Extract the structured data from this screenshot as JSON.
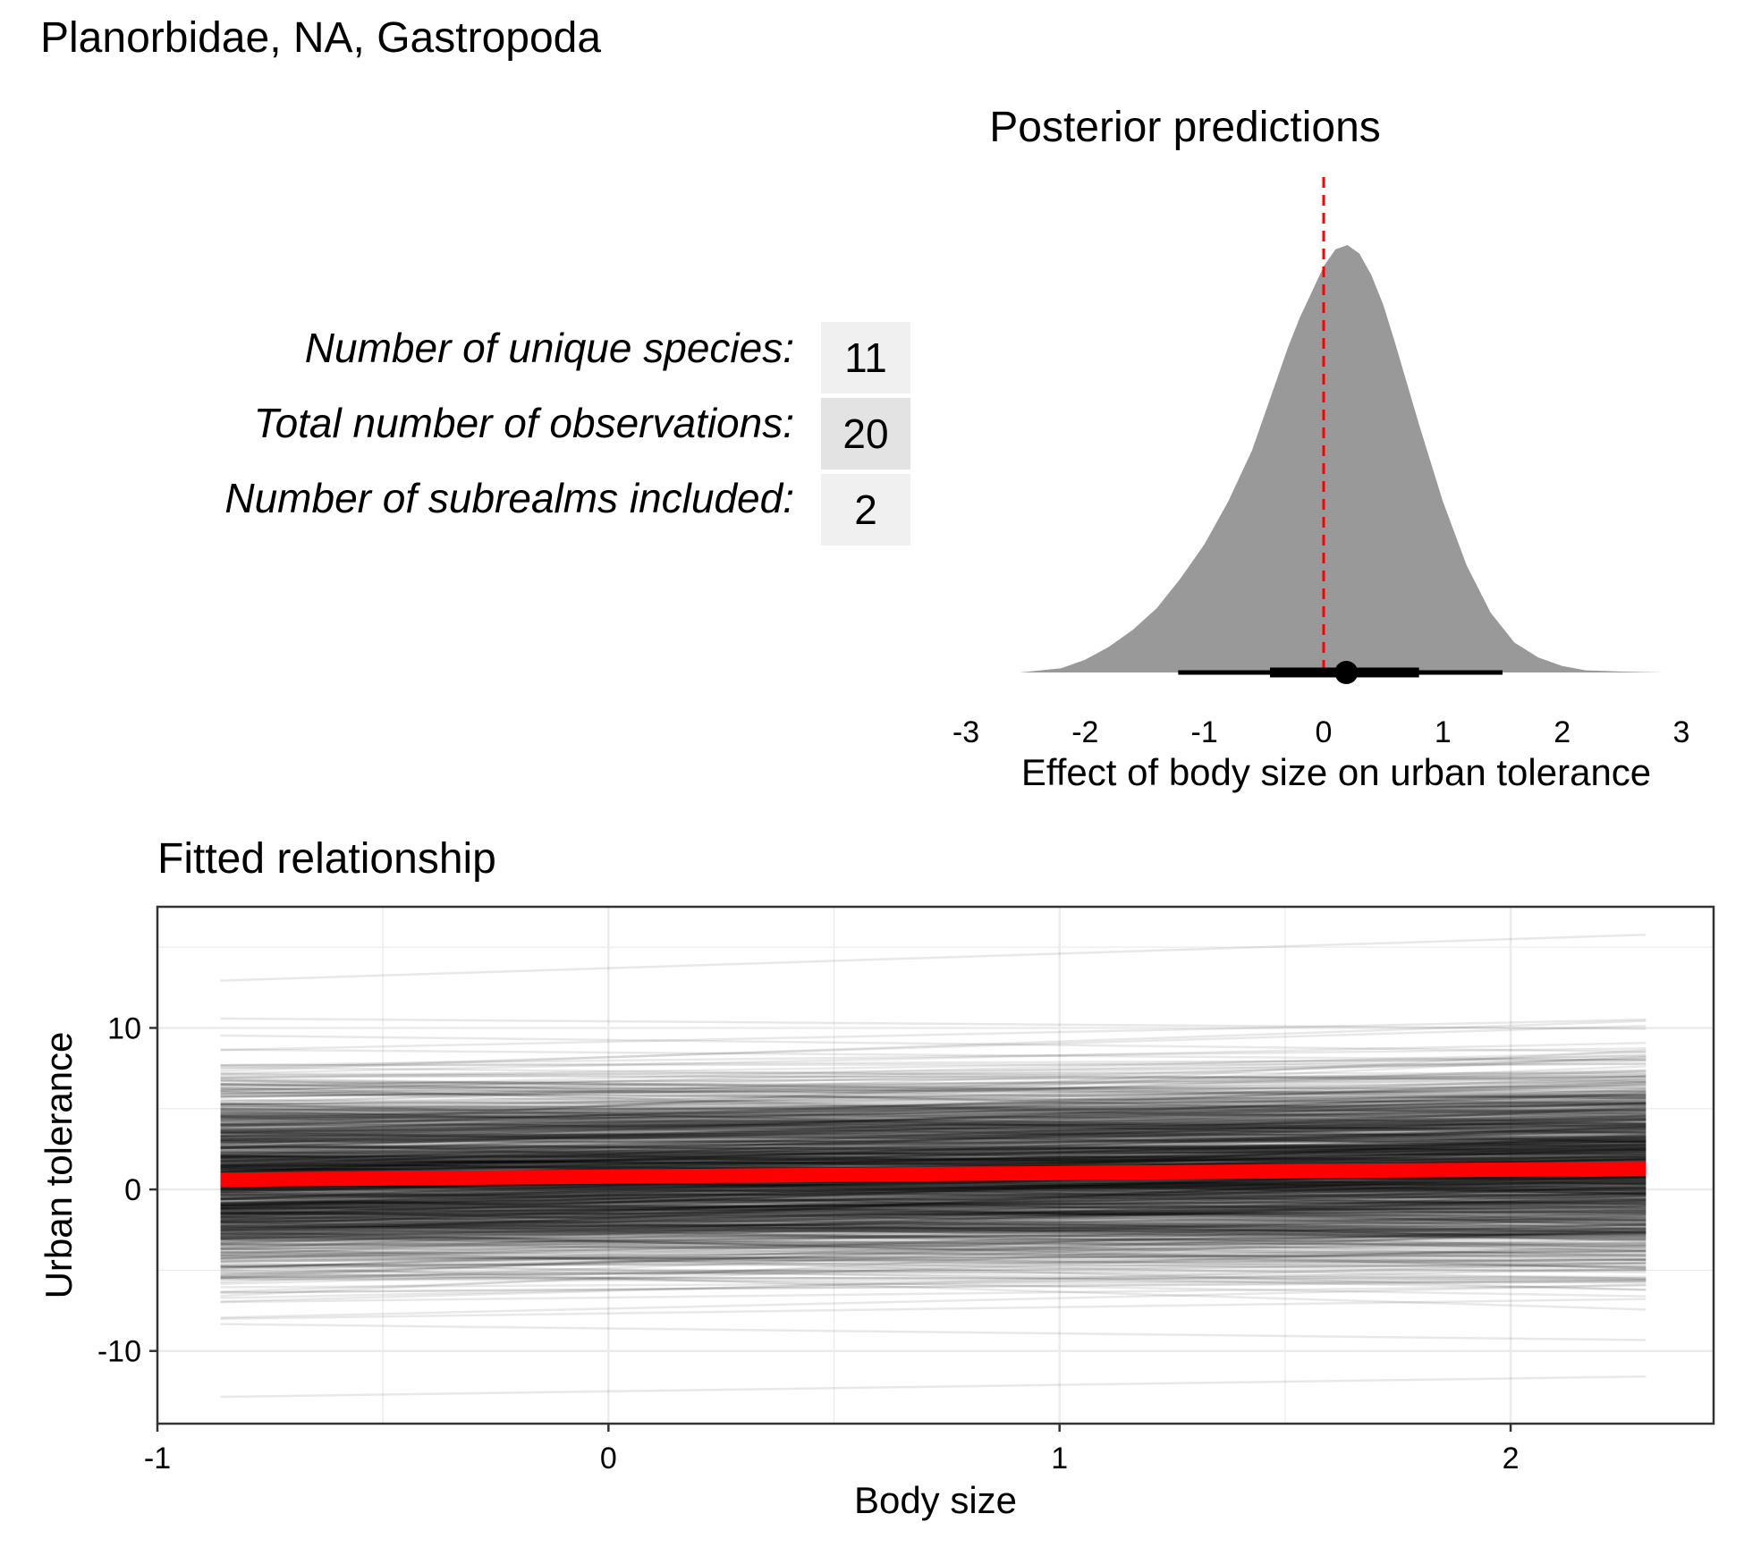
{
  "title": "Planorbidae, NA, Gastropoda",
  "stats": [
    {
      "label": "Number of unique species:",
      "value": "11"
    },
    {
      "label": "Total number of observations:",
      "value": "20"
    },
    {
      "label": "Number of subrealms included:",
      "value": "2"
    }
  ],
  "colors": {
    "density_fill": "#999999",
    "zero_line": "#ff0000",
    "fit_line": "#ff0000",
    "draw_line": "#000000",
    "grid": "#ebebeb"
  },
  "chart_data": [
    {
      "type": "area",
      "title": "Posterior predictions",
      "xlabel": "Effect of body size on urban tolerance",
      "xlim": [
        -3,
        3
      ],
      "xticks": [
        "-3",
        "-2",
        "-1",
        "0",
        "1",
        "2",
        "3"
      ],
      "density": {
        "x": [
          -2.55,
          -2.2,
          -2.0,
          -1.8,
          -1.6,
          -1.4,
          -1.2,
          -1.0,
          -0.8,
          -0.6,
          -0.4,
          -0.3,
          -0.2,
          -0.1,
          0.0,
          0.1,
          0.2,
          0.3,
          0.4,
          0.5,
          0.6,
          0.8,
          1.0,
          1.2,
          1.4,
          1.6,
          1.8,
          2.0,
          2.2,
          2.5,
          2.85
        ],
        "y": [
          0.0,
          0.01,
          0.03,
          0.06,
          0.1,
          0.15,
          0.22,
          0.3,
          0.4,
          0.52,
          0.68,
          0.76,
          0.83,
          0.89,
          0.95,
          0.99,
          1.0,
          0.98,
          0.93,
          0.86,
          0.77,
          0.58,
          0.4,
          0.25,
          0.14,
          0.07,
          0.035,
          0.015,
          0.005,
          0.002,
          0.0
        ]
      },
      "point_estimate": 0.19,
      "interval_inner": [
        -0.45,
        0.8
      ],
      "interval_outer": [
        -1.22,
        1.5
      ],
      "reference_line": 0
    },
    {
      "type": "line",
      "title": "Fitted relationship",
      "xlabel": "Body size",
      "ylabel": "Urban tolerance",
      "xlim": [
        -1,
        2.45
      ],
      "ylim": [
        -14.5,
        17.5
      ],
      "xticks": [
        "-1",
        "0",
        "1",
        "2"
      ],
      "yticks": [
        "-10",
        "0",
        "10"
      ],
      "grid": true,
      "x_range": [
        -0.86,
        2.3
      ],
      "series": [
        {
          "role": "posterior draws",
          "n_lines": 1000,
          "intercept_range": [
            -13,
            14
          ],
          "slope_range": [
            -1.4,
            1.6
          ]
        },
        {
          "role": "mean fit",
          "x": [
            -0.86,
            2.3
          ],
          "y": [
            0.6,
            1.3
          ]
        }
      ]
    }
  ]
}
